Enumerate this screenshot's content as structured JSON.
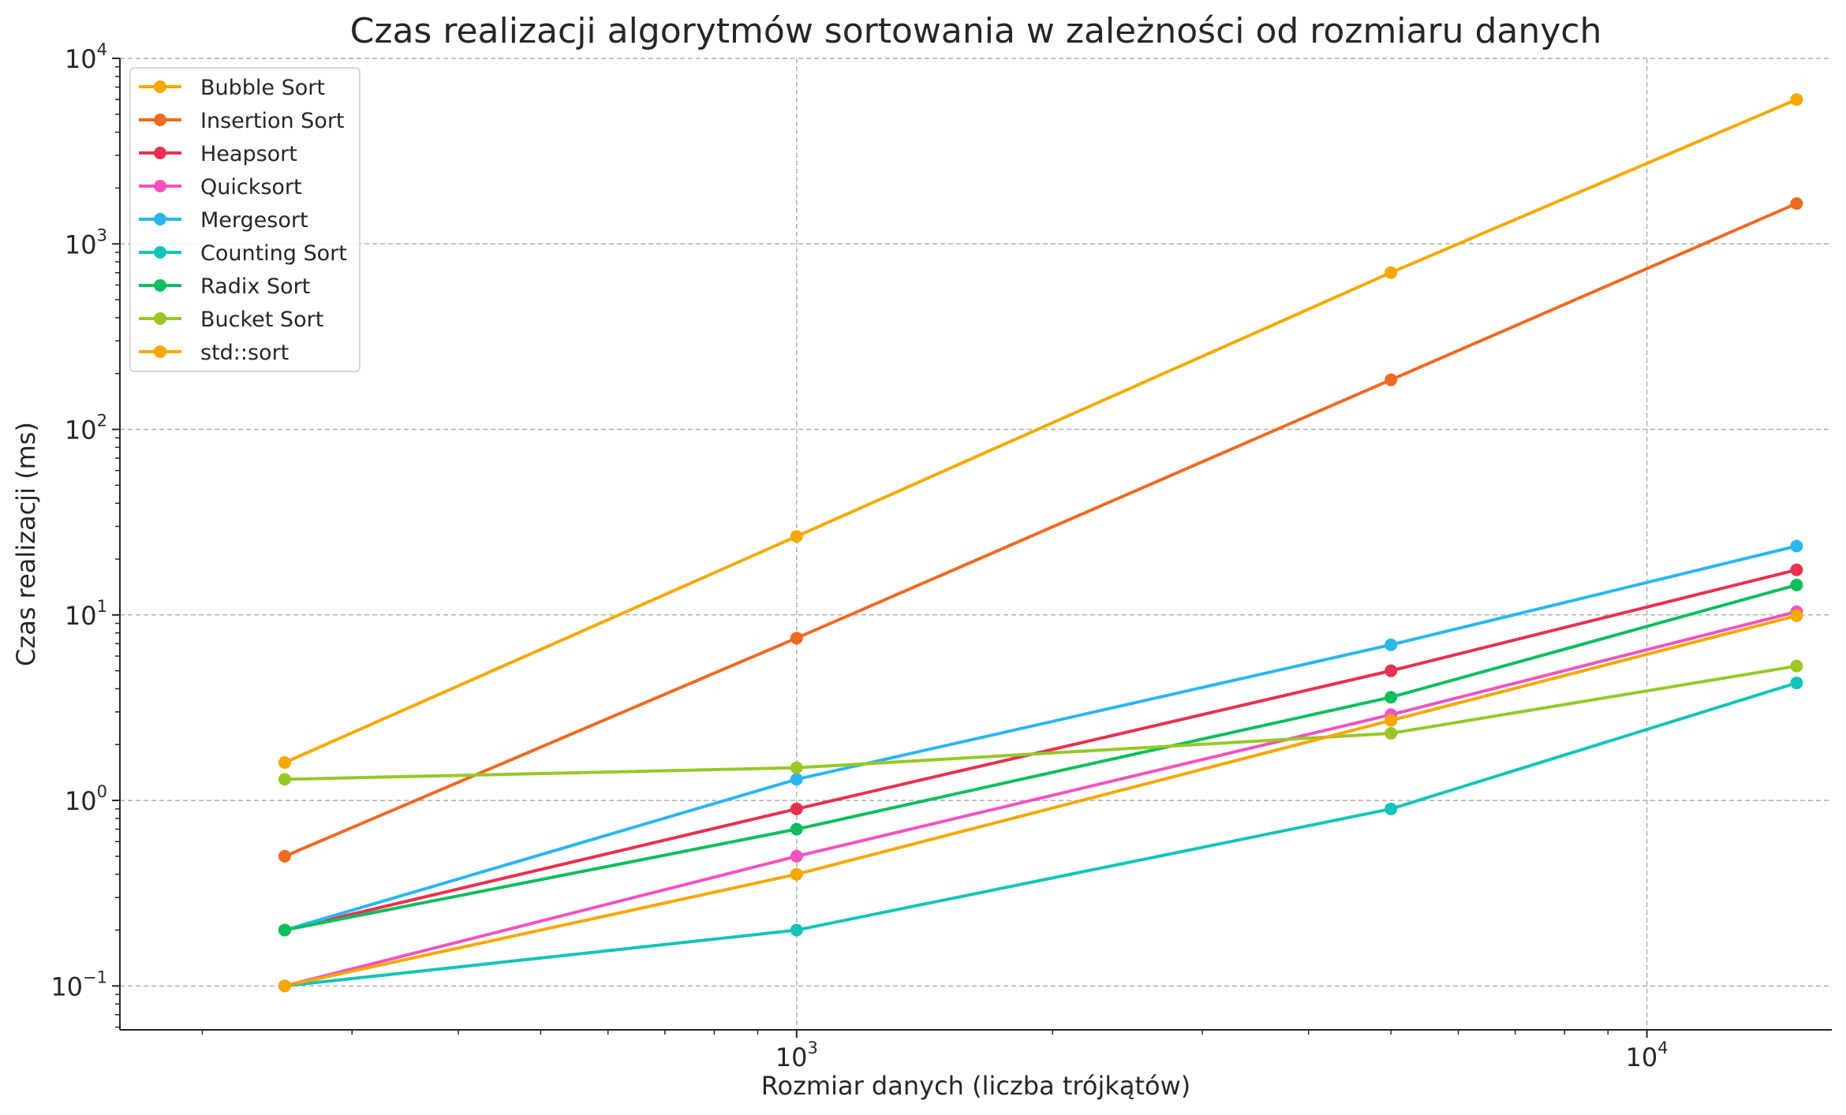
{
  "chart_data": {
    "type": "line",
    "title": "Czas realizacji algorytmów sortowania w zależności od rozmiaru danych",
    "xlabel": "Rozmiar danych (liczba trójkątów)",
    "ylabel": "Czas realizacji (ms)",
    "x_scale": "log",
    "y_scale": "log",
    "xlim": [
      160,
      16500
    ],
    "ylim": [
      0.058,
      10000
    ],
    "x_ticks": [
      {
        "value": 1000,
        "base": "10",
        "exp": "3"
      },
      {
        "value": 10000,
        "base": "10",
        "exp": "4"
      }
    ],
    "y_ticks": [
      {
        "value": 0.1,
        "base": "10",
        "exp": "−1"
      },
      {
        "value": 1,
        "base": "10",
        "exp": "0"
      },
      {
        "value": 10,
        "base": "10",
        "exp": "1"
      },
      {
        "value": 100,
        "base": "10",
        "exp": "2"
      },
      {
        "value": 1000,
        "base": "10",
        "exp": "3"
      },
      {
        "value": 10000,
        "base": "10",
        "exp": "4"
      }
    ],
    "grid": true,
    "legend_position": "top-left",
    "x": [
      250,
      1000,
      5000,
      15000
    ],
    "series": [
      {
        "name": "Bubble Sort",
        "color": "#f5a800",
        "values": [
          1.6,
          26.5,
          700,
          6000
        ]
      },
      {
        "name": "Insertion Sort",
        "color": "#ee6a22",
        "values": [
          0.5,
          7.5,
          185,
          1650
        ]
      },
      {
        "name": "Heapsort",
        "color": "#e8314f",
        "values": [
          0.2,
          0.9,
          5.0,
          17.5
        ]
      },
      {
        "name": "Quicksort",
        "color": "#f252c0",
        "values": [
          0.1,
          0.5,
          2.9,
          10.4
        ]
      },
      {
        "name": "Mergesort",
        "color": "#2bb6ee",
        "values": [
          0.2,
          1.3,
          6.9,
          23.5
        ]
      },
      {
        "name": "Counting Sort",
        "color": "#12c4b9",
        "values": [
          0.1,
          0.2,
          0.9,
          4.3
        ]
      },
      {
        "name": "Radix Sort",
        "color": "#0dbe5c",
        "values": [
          0.2,
          0.7,
          3.6,
          14.5
        ]
      },
      {
        "name": "Bucket Sort",
        "color": "#98c826",
        "values": [
          1.3,
          1.5,
          2.3,
          5.3
        ]
      },
      {
        "name": "std::sort",
        "color": "#f5a800",
        "values": [
          0.1,
          0.4,
          2.7,
          9.9
        ]
      }
    ]
  }
}
